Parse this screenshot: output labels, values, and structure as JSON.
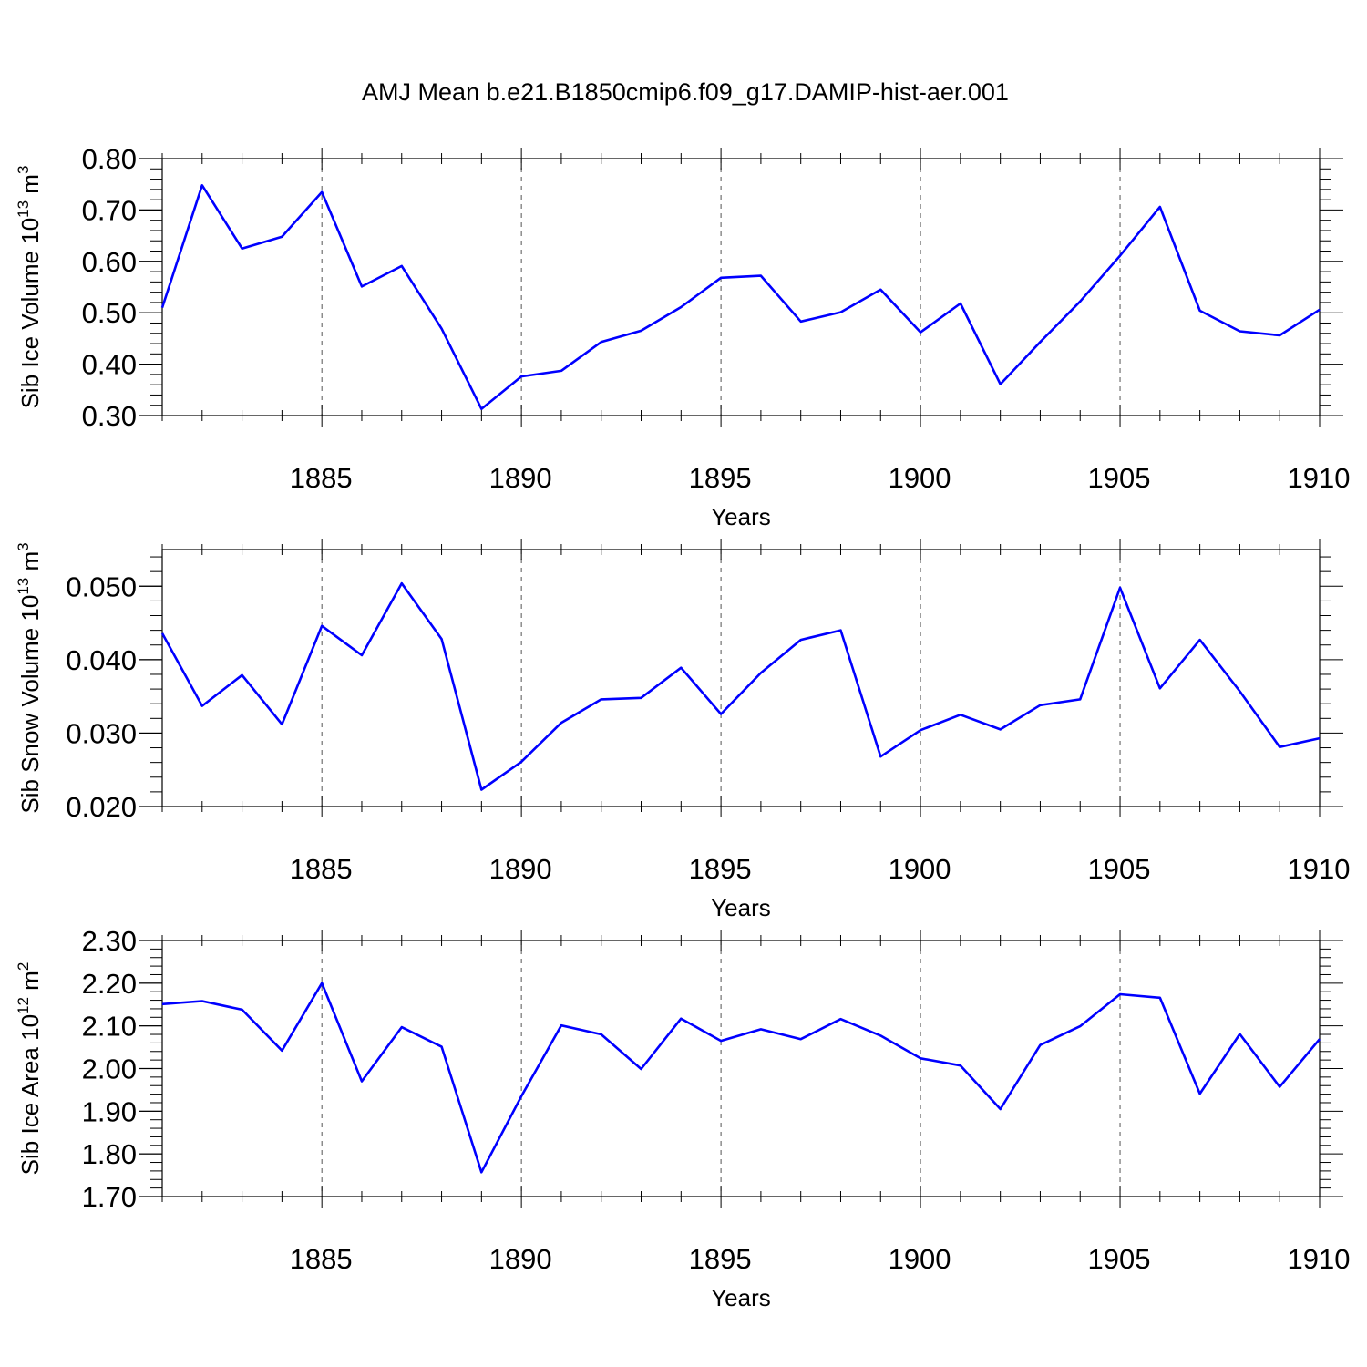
{
  "figure": {
    "title": "AMJ Mean b.e21.B1850cmip6.f09_g17.DAMIP-hist-aer.001"
  },
  "chart_data": [
    {
      "type": "line",
      "ylabel": {
        "text": "Sib Ice Volume 10",
        "exp": "13",
        "unit": " m",
        "unit_exp": "3"
      },
      "xlabel": "Years",
      "xlim": [
        1881,
        1910
      ],
      "ylim": [
        0.3,
        0.8
      ],
      "yticks": [
        0.3,
        0.4,
        0.5,
        0.6,
        0.7,
        0.8
      ],
      "ytick_labels": [
        "0.30",
        "0.40",
        "0.50",
        "0.60",
        "0.70",
        "0.80"
      ],
      "xticks": [
        1885,
        1890,
        1895,
        1900,
        1905,
        1910
      ],
      "xtick_labels": [
        "1885",
        "1890",
        "1895",
        "1900",
        "1905",
        "1910"
      ],
      "grid": "vertical dashed at major x ticks",
      "line_color": "#0000ff",
      "x": [
        1881,
        1882,
        1883,
        1884,
        1885,
        1886,
        1887,
        1888,
        1889,
        1890,
        1891,
        1892,
        1893,
        1894,
        1895,
        1896,
        1897,
        1898,
        1899,
        1900,
        1901,
        1902,
        1903,
        1904,
        1905,
        1906,
        1907,
        1908,
        1909,
        1910
      ],
      "values": [
        0.51,
        0.748,
        0.625,
        0.648,
        0.735,
        0.551,
        0.591,
        0.469,
        0.313,
        0.376,
        0.387,
        0.443,
        0.465,
        0.511,
        0.568,
        0.572,
        0.483,
        0.501,
        0.545,
        0.462,
        0.518,
        0.361,
        0.443,
        0.522,
        0.611,
        0.706,
        0.504,
        0.464,
        0.456,
        0.506
      ]
    },
    {
      "type": "line",
      "ylabel": {
        "text": "Sib Snow Volume 10",
        "exp": "13",
        "unit": " m",
        "unit_exp": "3"
      },
      "xlabel": "Years",
      "xlim": [
        1881,
        1910
      ],
      "ylim": [
        0.02,
        0.055
      ],
      "yticks": [
        0.02,
        0.03,
        0.04,
        0.05
      ],
      "ytick_labels": [
        "0.020",
        "0.030",
        "0.040",
        "0.050"
      ],
      "xticks": [
        1885,
        1890,
        1895,
        1900,
        1905,
        1910
      ],
      "xtick_labels": [
        "1885",
        "1890",
        "1895",
        "1900",
        "1905",
        "1910"
      ],
      "grid": "vertical dashed at major x ticks",
      "line_color": "#0000ff",
      "x": [
        1881,
        1882,
        1883,
        1884,
        1885,
        1886,
        1887,
        1888,
        1889,
        1890,
        1891,
        1892,
        1893,
        1894,
        1895,
        1896,
        1897,
        1898,
        1899,
        1900,
        1901,
        1902,
        1903,
        1904,
        1905,
        1906,
        1907,
        1908,
        1909,
        1910
      ],
      "values": [
        0.0436,
        0.0337,
        0.0379,
        0.0312,
        0.0446,
        0.0406,
        0.0504,
        0.0428,
        0.0223,
        0.0261,
        0.0314,
        0.0346,
        0.0348,
        0.0389,
        0.0326,
        0.0382,
        0.0427,
        0.044,
        0.0268,
        0.0304,
        0.0325,
        0.0305,
        0.0338,
        0.0346,
        0.0498,
        0.0361,
        0.0427,
        0.0357,
        0.0281,
        0.0293
      ]
    },
    {
      "type": "line",
      "ylabel": {
        "text": "Sib Ice Area 10",
        "exp": "12",
        "unit": " m",
        "unit_exp": "2"
      },
      "xlabel": "Years",
      "xlim": [
        1881,
        1910
      ],
      "ylim": [
        1.7,
        2.3
      ],
      "yticks": [
        1.7,
        1.8,
        1.9,
        2.0,
        2.1,
        2.2,
        2.3
      ],
      "ytick_labels": [
        "1.70",
        "1.80",
        "1.90",
        "2.00",
        "2.10",
        "2.20",
        "2.30"
      ],
      "xticks": [
        1885,
        1890,
        1895,
        1900,
        1905,
        1910
      ],
      "xtick_labels": [
        "1885",
        "1890",
        "1895",
        "1900",
        "1905",
        "1910"
      ],
      "grid": "vertical dashed at major x ticks",
      "line_color": "#0000ff",
      "x": [
        1881,
        1882,
        1883,
        1884,
        1885,
        1886,
        1887,
        1888,
        1889,
        1890,
        1891,
        1892,
        1893,
        1894,
        1895,
        1896,
        1897,
        1898,
        1899,
        1900,
        1901,
        1902,
        1903,
        1904,
        1905,
        1906,
        1907,
        1908,
        1909,
        1910
      ],
      "values": [
        2.151,
        2.158,
        2.138,
        2.042,
        2.2,
        1.97,
        2.097,
        2.051,
        1.757,
        1.935,
        2.101,
        2.08,
        1.999,
        2.117,
        2.065,
        2.092,
        2.069,
        2.116,
        2.077,
        2.024,
        2.007,
        1.905,
        2.055,
        2.099,
        2.174,
        2.166,
        1.941,
        2.081,
        1.957,
        2.069
      ]
    }
  ]
}
